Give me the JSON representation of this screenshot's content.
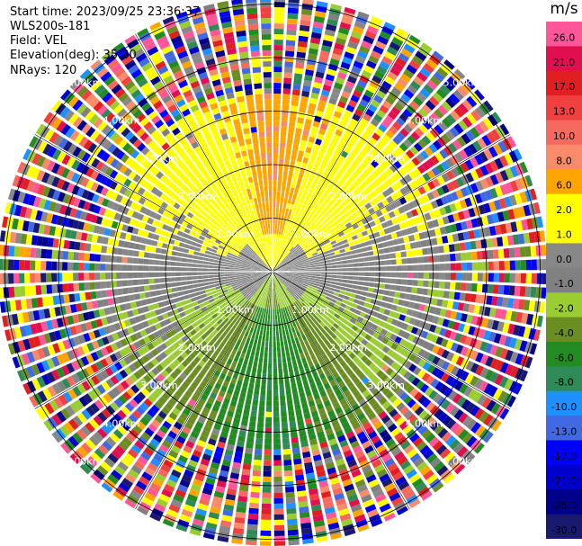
{
  "header": {
    "start_time": "Start time: 2023/09/25 23:36:37",
    "station": "WLS200s-181",
    "field": "Field: VEL",
    "elevation": "Elevation(deg): 35.30",
    "nrays": "NRays: 120"
  },
  "colorbar": {
    "unit": "m/s",
    "ticks": [
      "26.0",
      "21.0",
      "17.0",
      "13.0",
      "10.0",
      "8.0",
      "6.0",
      "2.0",
      "1.0",
      "0.0",
      "-1.0",
      "-2.0",
      "-4.0",
      "-6.0",
      "-8.0",
      "-10.0",
      "-13.0",
      "-17.0",
      "-21.0",
      "-26.0",
      "-30.0"
    ],
    "colors": [
      "#ff5599",
      "#e01050",
      "#e02020",
      "#f04040",
      "#f56a5e",
      "#f88c6a",
      "#ffa500",
      "#ffff00",
      "#ffff00",
      "#888888",
      "#808080",
      "#9acd32",
      "#6b8e23",
      "#228b22",
      "#2e8b57",
      "#1e90ff",
      "#4169e1",
      "#0000ff",
      "#0000cd",
      "#00008b",
      "#191970"
    ]
  },
  "chart_data": {
    "type": "heatmap",
    "projection": "polar PPI",
    "field": "VEL",
    "units": "m/s",
    "nrays": 120,
    "range_rings_km": [
      1.0,
      2.0,
      3.0,
      4.0,
      5.0
    ],
    "ring_labels": [
      "1.00km",
      "2.00km",
      "3.00km",
      "4.00km",
      "5.00km"
    ],
    "max_range_km": 5.7,
    "valid_range_km": 3.3,
    "sector_velocity_m_s": [
      {
        "sector": "north",
        "velocity": 8.0
      },
      {
        "sector": "east",
        "velocity": 0.0
      },
      {
        "sector": "south",
        "velocity": -6.0
      },
      {
        "sector": "west",
        "velocity": 0.0
      },
      {
        "sector": "north-east",
        "velocity": 2.0
      },
      {
        "sector": "north-west",
        "velocity": 2.0
      },
      {
        "sector": "south-east",
        "velocity": -2.0
      },
      {
        "sector": "south-west",
        "velocity": -2.0
      }
    ],
    "vmin": -30.0,
    "vmax": 26.0
  }
}
